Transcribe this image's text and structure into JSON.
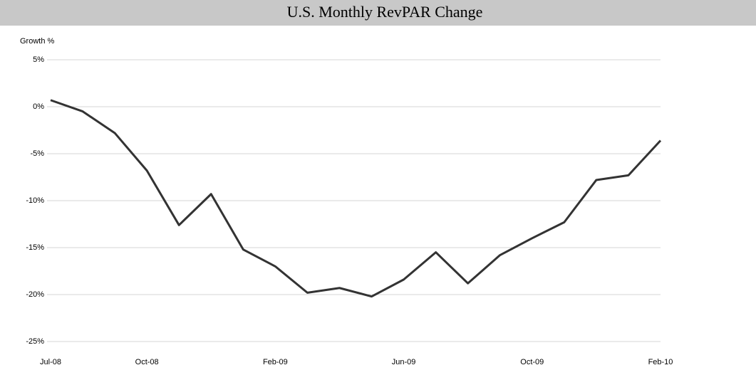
{
  "chart_data": {
    "type": "line",
    "title": "U.S. Monthly RevPAR Change",
    "y_axis_label": "Growth %",
    "categories": [
      "Jul-08",
      null,
      null,
      "Oct-08",
      null,
      null,
      null,
      "Feb-09",
      null,
      null,
      null,
      "Jun-09",
      null,
      null,
      null,
      "Oct-09",
      null,
      null,
      null,
      "Feb-10"
    ],
    "series": [
      {
        "name": "RevPAR Change",
        "color": "#333333",
        "values": [
          0.7,
          -0.5,
          -2.8,
          -6.8,
          -12.6,
          -9.3,
          -15.2,
          -17.0,
          -19.8,
          -19.3,
          -20.2,
          -18.4,
          -15.5,
          -18.8,
          -15.8,
          -14.0,
          -12.3,
          -7.8,
          -7.3,
          -3.6
        ]
      }
    ],
    "ylim": [
      -25,
      5
    ],
    "yticks": [
      {
        "value": 5,
        "label": "5%"
      },
      {
        "value": 0,
        "label": "0%"
      },
      {
        "value": -5,
        "label": "-5%"
      },
      {
        "value": -10,
        "label": "-10%"
      },
      {
        "value": -15,
        "label": "-15%"
      },
      {
        "value": -20,
        "label": "-20%"
      },
      {
        "value": -25,
        "label": "-25%"
      }
    ],
    "grid": true
  }
}
